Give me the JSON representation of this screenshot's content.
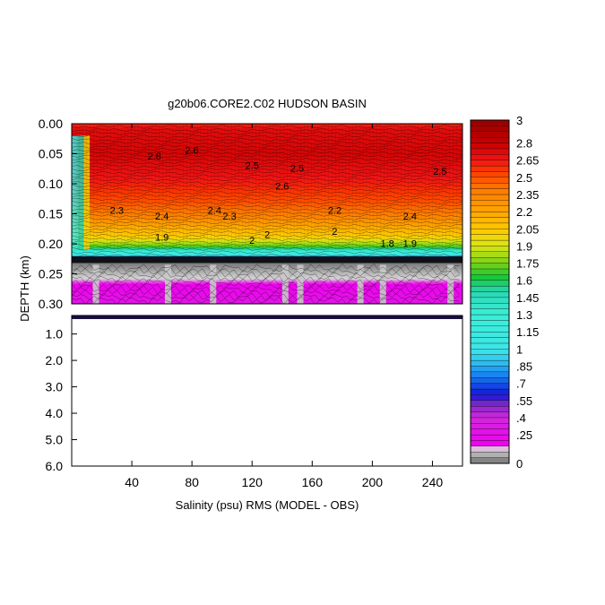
{
  "chart_data": {
    "type": "heatmap",
    "title": "g20b06.CORE2.C02 HUDSON BASIN",
    "xlabel": "Salinity (psu) RMS (MODEL - OBS)",
    "ylabel": "DEPTH (km)",
    "x_range": [
      0,
      260
    ],
    "x_ticks": [
      40,
      80,
      120,
      160,
      200,
      240
    ],
    "y_ticks_upper": [
      "0.00",
      "0.05",
      "0.10",
      "0.15",
      "0.20",
      "0.25",
      "0.30"
    ],
    "y_range_upper_km": [
      0,
      0.3
    ],
    "y_ticks_lower": [
      "1.0",
      "2.0",
      "3.0",
      "4.0",
      "5.0",
      "6.0"
    ],
    "y_range_lower_km": [
      0.3,
      6.0
    ],
    "colorbar": {
      "min": 0,
      "max": 3,
      "labels": [
        "3",
        "2.8",
        "2.65",
        "2.5",
        "2.35",
        "2.2",
        "2.05",
        "1.9",
        "1.75",
        "1.6",
        "1.45",
        "1.3",
        "1.15",
        "1",
        ".85",
        ".7",
        ".55",
        ".4",
        ".25",
        "0"
      ],
      "label_values": [
        3,
        2.8,
        2.65,
        2.5,
        2.35,
        2.2,
        2.05,
        1.9,
        1.75,
        1.6,
        1.45,
        1.3,
        1.15,
        1.0,
        0.85,
        0.7,
        0.55,
        0.4,
        0.25,
        0
      ]
    },
    "contour_labels": [
      "2.8",
      "2.6",
      "2.5",
      "2.6",
      "2.5",
      "2.4",
      "2.3",
      "2.3",
      "2.4",
      "2.2",
      "2.5",
      "2.4",
      "2",
      "1.9",
      "2",
      "1.8",
      "1.9",
      "2"
    ],
    "profile": [
      {
        "depth": 0.0,
        "value": 2.6
      },
      {
        "depth": 0.01,
        "value": 2.7
      },
      {
        "depth": 0.05,
        "value": 2.75
      },
      {
        "depth": 0.1,
        "value": 2.62
      },
      {
        "depth": 0.13,
        "value": 2.5
      },
      {
        "depth": 0.15,
        "value": 2.38
      },
      {
        "depth": 0.17,
        "value": 2.2
      },
      {
        "depth": 0.19,
        "value": 2.0
      },
      {
        "depth": 0.205,
        "value": 1.7
      },
      {
        "depth": 0.215,
        "value": 1.2
      },
      {
        "depth": 0.225,
        "value": 0.6
      },
      {
        "depth": 0.23,
        "value": 0.0
      },
      {
        "depth": 0.3,
        "value": 0.3
      }
    ]
  }
}
